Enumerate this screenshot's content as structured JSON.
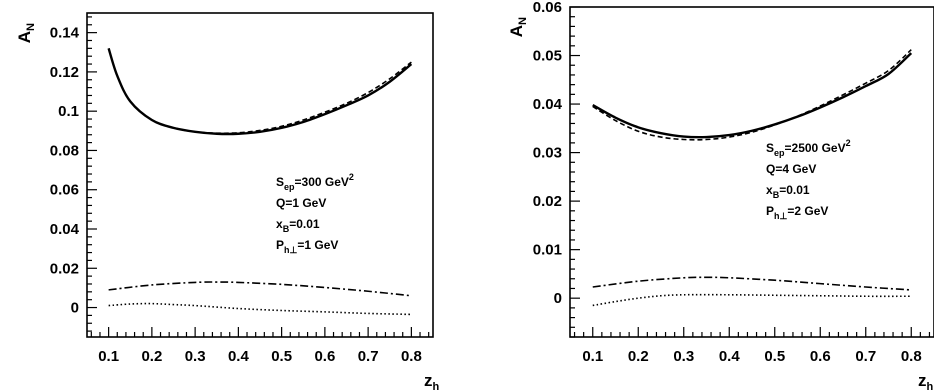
{
  "chart_data": [
    {
      "type": "line",
      "ylabel": "A",
      "ylabel_sub": "N",
      "xlabel": "z",
      "xlabel_sub": "h",
      "xlim": [
        0.05,
        0.85
      ],
      "ylim": [
        -0.015,
        0.15
      ],
      "xticks": [
        "0.1",
        "0.2",
        "0.3",
        "0.4",
        "0.5",
        "0.6",
        "0.7",
        "0.8"
      ],
      "xtick_values": [
        0.1,
        0.2,
        0.3,
        0.4,
        0.5,
        0.6,
        0.7,
        0.8
      ],
      "yticks": [
        "0",
        "0.02",
        "0.04",
        "0.06",
        "0.08",
        "0.1",
        "0.12",
        "0.14"
      ],
      "ytick_values": [
        0,
        0.02,
        0.04,
        0.06,
        0.08,
        0.1,
        0.12,
        0.14
      ],
      "annotations": [
        {
          "main": "S",
          "sub": "ep",
          "rest": "=300 GeV",
          "sup": "2"
        },
        {
          "main": "Q=1 GeV",
          "sub": "",
          "rest": "",
          "sup": ""
        },
        {
          "main": "x",
          "sub": "B",
          "rest": "=0.01",
          "sup": ""
        },
        {
          "main": "P",
          "sub": "h⊥",
          "rest": "=1 GeV",
          "sup": ""
        }
      ],
      "series": [
        {
          "style": "solid",
          "x": [
            0.1,
            0.12,
            0.15,
            0.2,
            0.25,
            0.3,
            0.35,
            0.4,
            0.45,
            0.5,
            0.55,
            0.6,
            0.65,
            0.7,
            0.75,
            0.8
          ],
          "y": [
            0.132,
            0.118,
            0.105,
            0.0955,
            0.0915,
            0.0895,
            0.0885,
            0.0885,
            0.0895,
            0.0915,
            0.0945,
            0.0985,
            0.103,
            0.108,
            0.115,
            0.124
          ]
        },
        {
          "style": "dashed",
          "x": [
            0.1,
            0.12,
            0.15,
            0.2,
            0.25,
            0.3,
            0.35,
            0.4,
            0.45,
            0.5,
            0.55,
            0.6,
            0.65,
            0.7,
            0.75,
            0.8
          ],
          "y": [
            0.132,
            0.118,
            0.105,
            0.0955,
            0.0915,
            0.0895,
            0.0888,
            0.089,
            0.0902,
            0.0923,
            0.0955,
            0.0995,
            0.104,
            0.1095,
            0.1165,
            0.125
          ]
        },
        {
          "style": "dashdot",
          "x": [
            0.1,
            0.2,
            0.3,
            0.35,
            0.4,
            0.5,
            0.6,
            0.7,
            0.8
          ],
          "y": [
            0.009,
            0.0115,
            0.0128,
            0.013,
            0.0128,
            0.0118,
            0.0102,
            0.0083,
            0.006
          ]
        },
        {
          "style": "dotted",
          "x": [
            0.1,
            0.15,
            0.2,
            0.25,
            0.3,
            0.4,
            0.5,
            0.6,
            0.7,
            0.8
          ],
          "y": [
            0.001,
            0.0018,
            0.002,
            0.0015,
            0.001,
            -0.0005,
            -0.0015,
            -0.0022,
            -0.003,
            -0.0035
          ]
        }
      ]
    },
    {
      "type": "line",
      "ylabel": "A",
      "ylabel_sub": "N",
      "xlabel": "z",
      "xlabel_sub": "h",
      "xlim": [
        0.05,
        0.85
      ],
      "ylim": [
        -0.008,
        0.06
      ],
      "xticks": [
        "0.1",
        "0.2",
        "0.3",
        "0.4",
        "0.5",
        "0.6",
        "0.7",
        "0.8"
      ],
      "xtick_values": [
        0.1,
        0.2,
        0.3,
        0.4,
        0.5,
        0.6,
        0.7,
        0.8
      ],
      "yticks": [
        "0",
        "0.01",
        "0.02",
        "0.03",
        "0.04",
        "0.05",
        "0.06"
      ],
      "ytick_values": [
        0,
        0.01,
        0.02,
        0.03,
        0.04,
        0.05,
        0.06
      ],
      "annotations": [
        {
          "main": "S",
          "sub": "ep",
          "rest": "=2500 GeV",
          "sup": "2"
        },
        {
          "main": "Q=4 GeV",
          "sub": "",
          "rest": "",
          "sup": ""
        },
        {
          "main": "x",
          "sub": "B",
          "rest": "=0.01",
          "sup": ""
        },
        {
          "main": "P",
          "sub": "h⊥",
          "rest": "=2 GeV",
          "sup": ""
        }
      ],
      "series": [
        {
          "style": "solid",
          "x": [
            0.1,
            0.15,
            0.2,
            0.25,
            0.3,
            0.35,
            0.4,
            0.45,
            0.5,
            0.55,
            0.6,
            0.65,
            0.7,
            0.75,
            0.8
          ],
          "y": [
            0.0398,
            0.0372,
            0.0352,
            0.034,
            0.0333,
            0.0332,
            0.0336,
            0.0345,
            0.0358,
            0.0374,
            0.0393,
            0.0414,
            0.0437,
            0.0462,
            0.0505
          ]
        },
        {
          "style": "dashed",
          "x": [
            0.1,
            0.15,
            0.2,
            0.25,
            0.3,
            0.35,
            0.4,
            0.45,
            0.5,
            0.55,
            0.6,
            0.65,
            0.7,
            0.75,
            0.8
          ],
          "y": [
            0.0395,
            0.0366,
            0.0344,
            0.0332,
            0.0327,
            0.0327,
            0.0332,
            0.0342,
            0.0357,
            0.0375,
            0.0396,
            0.0419,
            0.0443,
            0.0469,
            0.0512
          ]
        },
        {
          "style": "dashdot",
          "x": [
            0.1,
            0.2,
            0.3,
            0.35,
            0.4,
            0.5,
            0.6,
            0.7,
            0.8
          ],
          "y": [
            0.0023,
            0.0035,
            0.0042,
            0.0043,
            0.0042,
            0.0037,
            0.003,
            0.0023,
            0.0017
          ]
        },
        {
          "style": "dotted",
          "x": [
            0.1,
            0.15,
            0.2,
            0.25,
            0.3,
            0.4,
            0.5,
            0.6,
            0.7,
            0.8
          ],
          "y": [
            -0.0015,
            -0.0007,
            0.0,
            0.0005,
            0.0007,
            0.0007,
            0.0006,
            0.0005,
            0.0004,
            0.0004
          ]
        }
      ]
    }
  ]
}
